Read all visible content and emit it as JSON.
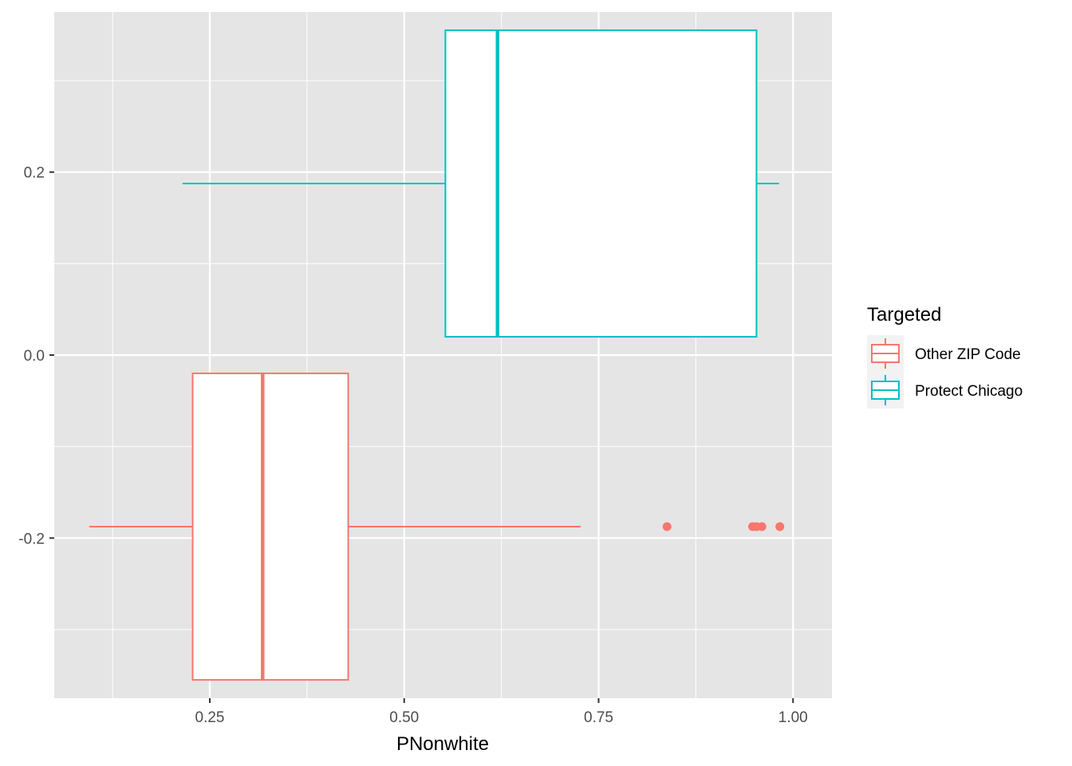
{
  "chart_data": {
    "type": "boxplot",
    "orientation": "horizontal",
    "title": "",
    "xlabel": "PNonwhite",
    "ylabel": "",
    "xlim": [
      0.05,
      1.05
    ],
    "ylim": [
      -0.375,
      0.375
    ],
    "x_ticks": [
      0.25,
      0.5,
      0.75,
      1.0
    ],
    "x_tick_labels": [
      "0.25",
      "0.50",
      "0.75",
      "1.00"
    ],
    "y_ticks": [
      -0.2,
      0.0,
      0.2
    ],
    "y_tick_labels": [
      "-0.2",
      "0.0",
      "0.2"
    ],
    "grid": true,
    "panel_background": "#e5e5e5",
    "legend": {
      "title": "Targeted",
      "position": "right",
      "entries": [
        "Other ZIP Code",
        "Protect Chicago"
      ]
    },
    "series": [
      {
        "name": "Other ZIP Code",
        "color": "#f8766d",
        "y_center": -0.1875,
        "y_range": [
          -0.355,
          -0.02
        ],
        "whisker_low": 0.095,
        "q1": 0.228,
        "median": 0.318,
        "q3": 0.428,
        "whisker_high": 0.727,
        "outliers": [
          0.838,
          0.948,
          0.953,
          0.96,
          0.983
        ]
      },
      {
        "name": "Protect Chicago",
        "color": "#00bfc4",
        "y_center": 0.1875,
        "y_range": [
          0.02,
          0.355
        ],
        "whisker_low": 0.215,
        "q1": 0.553,
        "median": 0.62,
        "q3": 0.953,
        "whisker_high": 0.982,
        "outliers": []
      }
    ]
  }
}
